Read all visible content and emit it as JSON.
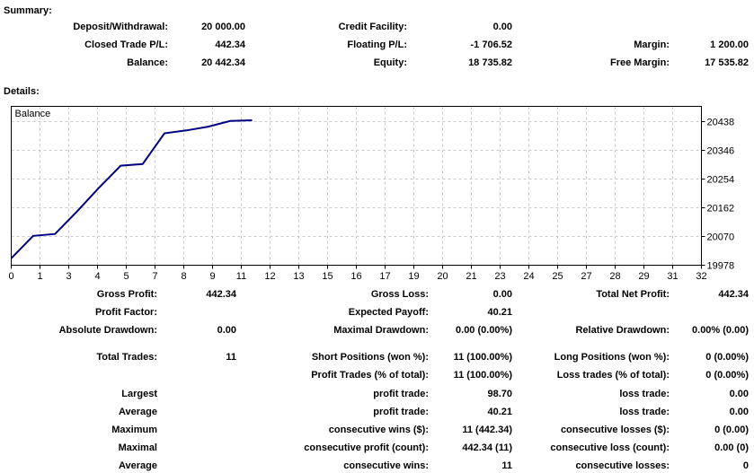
{
  "page": {
    "summary_title": "Summary:",
    "details_title": "Details:"
  },
  "summary": {
    "rows": [
      {
        "cells": [
          "Deposit/Withdrawal:",
          "20 000.00",
          "Credit Facility:",
          "0.00",
          "",
          ""
        ]
      },
      {
        "cells": [
          "Closed Trade P/L:",
          "442.34",
          "Floating P/L:",
          "-1 706.52",
          "Margin:",
          "1 200.00"
        ]
      },
      {
        "cells": [
          "Balance:",
          "20 442.34",
          "Equity:",
          "18 735.82",
          "Free Margin:",
          "17 535.82"
        ]
      }
    ]
  },
  "stats": {
    "rows": [
      {
        "cells": [
          "Gross Profit:",
          "442.34",
          "Gross Loss:",
          "0.00",
          "Total Net Profit:",
          "442.34"
        ]
      },
      {
        "cells": [
          "Profit Factor:",
          "",
          "Expected Payoff:",
          "40.21",
          "",
          ""
        ]
      },
      {
        "cells": [
          "Absolute Drawdown:",
          "0.00",
          "Maximal Drawdown:",
          "0.00 (0.00%)",
          "Relative Drawdown:",
          "0.00% (0.00)"
        ]
      },
      {
        "cells": [
          "Total Trades:",
          "11",
          "Short Positions (won %):",
          "11 (100.00%)",
          "Long Positions (won %):",
          "0 (0.00%)"
        ]
      },
      {
        "cells": [
          "",
          "",
          "Profit Trades (% of total):",
          "11 (100.00%)",
          "Loss trades (% of total):",
          "0 (0.00%)"
        ]
      },
      {
        "cells": [
          "Largest",
          "",
          "profit trade:",
          "98.70",
          "loss trade:",
          "0.00"
        ]
      },
      {
        "cells": [
          "Average",
          "",
          "profit trade:",
          "40.21",
          "loss trade:",
          "0.00"
        ]
      },
      {
        "cells": [
          "Maximum",
          "",
          "consecutive wins ($):",
          "11 (442.34)",
          "consecutive losses ($):",
          "0 (0.00)"
        ]
      },
      {
        "cells": [
          "Maximal",
          "",
          "consecutive profit (count):",
          "442.34 (11)",
          "consecutive loss (count):",
          "0.00 (0)"
        ]
      },
      {
        "cells": [
          "Average",
          "",
          "consecutive wins:",
          "11",
          "consecutive losses:",
          "0"
        ]
      }
    ]
  },
  "chart_data": {
    "type": "line",
    "title": "Balance",
    "legend_position": "top-left-inside",
    "grid": true,
    "line_color": "#000080",
    "grid_color": "#c9c9c9",
    "series": [
      {
        "name": "Balance",
        "x": [
          0,
          1,
          2,
          3,
          4,
          5,
          6,
          7,
          8,
          9,
          10,
          11
        ],
        "values": [
          20000,
          20072,
          20078,
          20150,
          20226,
          20297,
          20302,
          20400.7,
          20410,
          20422,
          20440,
          20442.34
        ]
      }
    ],
    "x_tick_labels": [
      "0",
      "1",
      "3",
      "4",
      "5",
      "7",
      "8",
      "9",
      "11",
      "12",
      "13",
      "15",
      "16",
      "17",
      "19",
      "20",
      "21",
      "23",
      "24",
      "25",
      "27",
      "28",
      "29",
      "31",
      "32"
    ],
    "x_gridline_count": 24,
    "y_tick_values": [
      20438,
      20346,
      20254,
      20162,
      20070,
      19978
    ],
    "y_tick_labels": [
      "20438",
      "20346",
      "20254",
      "20162",
      "20070",
      "19978"
    ],
    "ylim": [
      19978,
      20487
    ]
  }
}
